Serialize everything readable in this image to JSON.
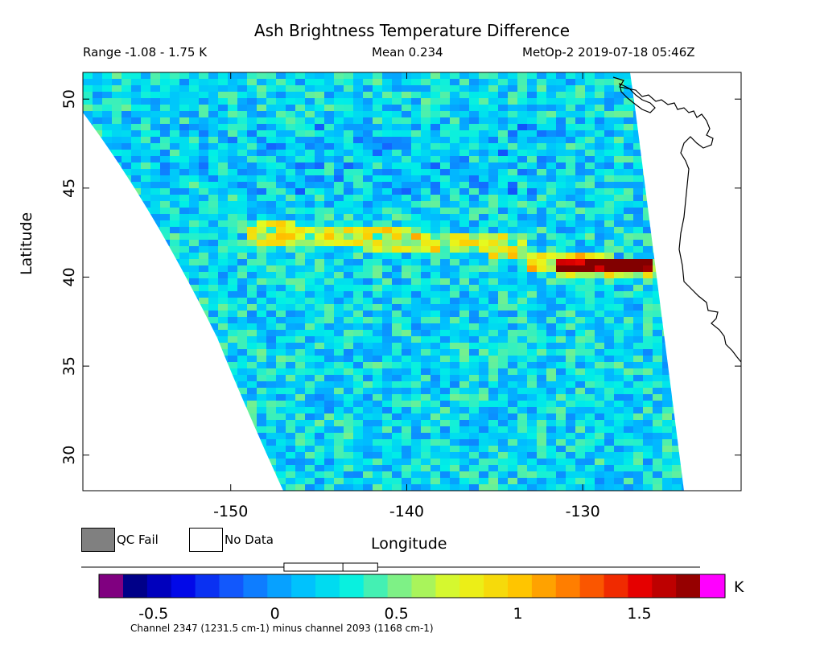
{
  "header": {
    "title": "Ash Brightness Temperature Difference",
    "range": "Range -1.08 - 1.75 K",
    "mean": "Mean 0.234",
    "satellite": "MetOp-2 2019-07-18 05:46Z"
  },
  "map": {
    "xlabel": "Longitude",
    "ylabel": "Latitude",
    "lon_ticks": [
      "-150",
      "-140",
      "-130"
    ],
    "lat_ticks": [
      "50",
      "45",
      "40",
      "35",
      "30"
    ],
    "lon_tick_values": [
      -150,
      -140,
      -130
    ],
    "lat_tick_values": [
      50,
      45,
      40,
      35,
      30
    ],
    "lon_range": [
      -158.4,
      -121.0
    ],
    "lat_range": [
      28.0,
      51.5
    ],
    "swath": "satellite swath of retrieved values, noise around 0 to 0.5 K with a warm band near 40-41 N",
    "coastline": "North American west coast (British Columbia to California)"
  },
  "legend": {
    "qc_fail": "QC Fail",
    "no_data": "No Data",
    "qc_fail_color": "#808080",
    "no_data_color": "#ffffff"
  },
  "colorbar": {
    "unit": "K",
    "ticks": [
      "-0.5",
      "0",
      "0.5",
      "1",
      "1.5"
    ],
    "tick_values": [
      -0.5,
      0,
      0.5,
      1,
      1.5
    ],
    "range": [
      -0.625,
      1.75
    ],
    "low_color": "#800080",
    "high_color": "#ff00ff",
    "channel_note": "Channel 2347 (1231.5 cm-1) minus channel 2093 (1168 cm-1)",
    "boxplot": {
      "min": -1.08,
      "q1": 0.12,
      "median": 0.23,
      "q3": 0.34,
      "max": 1.75
    }
  }
}
